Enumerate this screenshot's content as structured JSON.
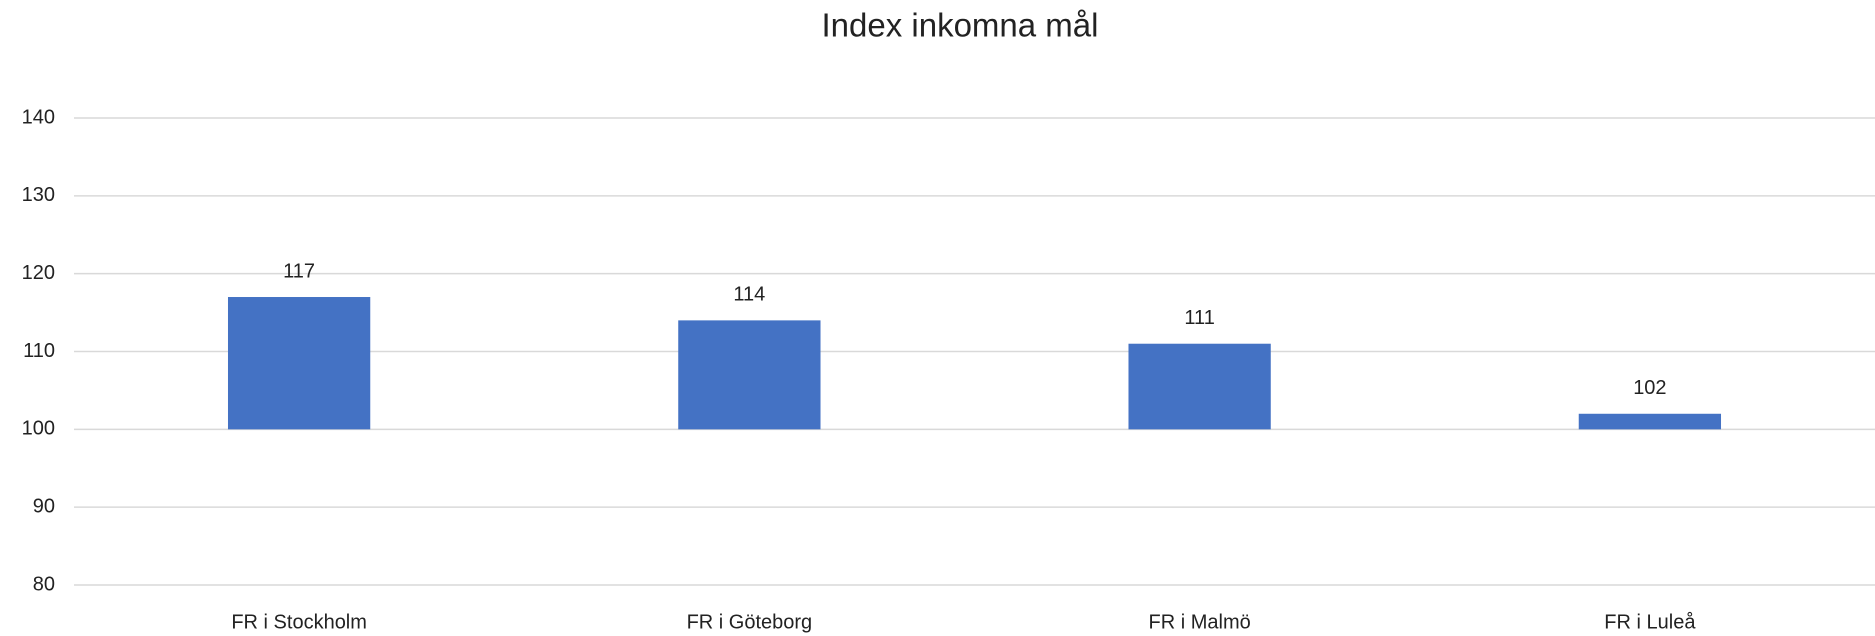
{
  "chart_data": {
    "type": "bar",
    "title": "Index inkomna mål",
    "categories": [
      "FR i Stockholm",
      "FR i Göteborg",
      "FR i Malmö",
      "FR i Luleå"
    ],
    "values": [
      117,
      114,
      111,
      102
    ],
    "color": "#4472c4",
    "ylim": [
      80,
      140
    ],
    "yticks": [
      80,
      90,
      100,
      110,
      120,
      130,
      140
    ],
    "grid": true,
    "base": 100,
    "data_labels": true
  }
}
